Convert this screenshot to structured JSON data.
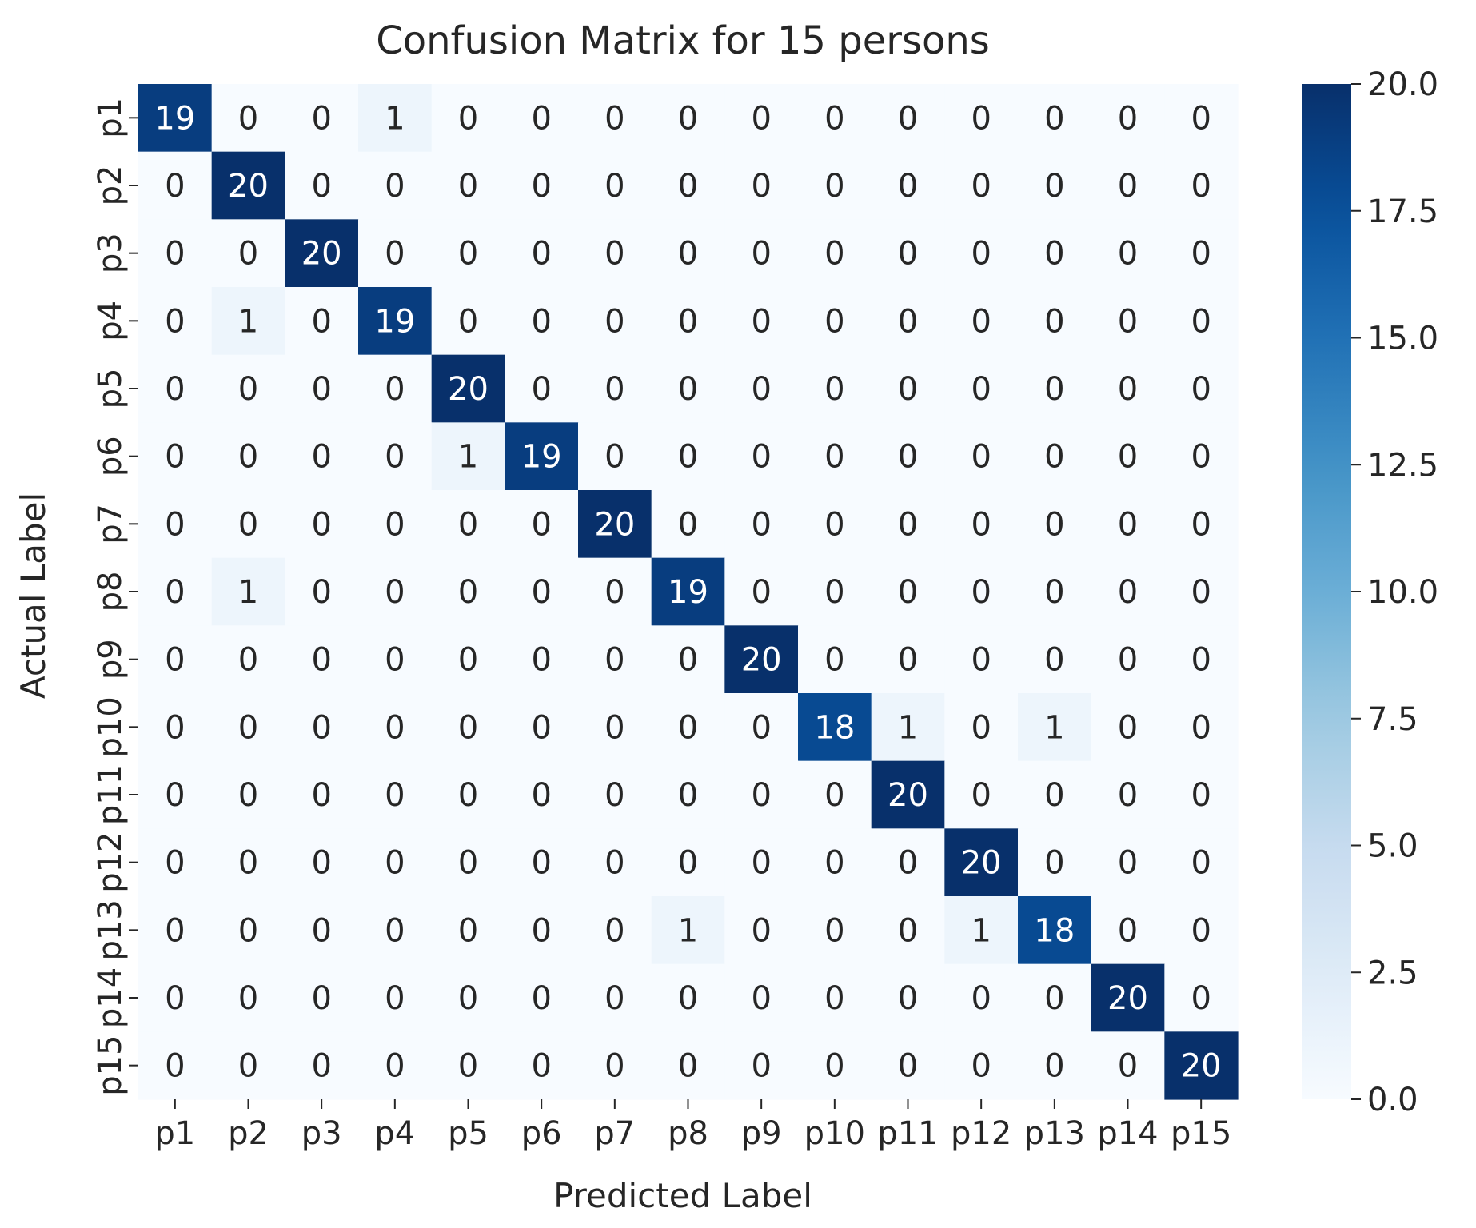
{
  "chart_data": {
    "type": "heatmap",
    "title": "Confusion Matrix for 15 persons",
    "xlabel": "Predicted Label",
    "ylabel": "Actual Label",
    "x_categories": [
      "p1",
      "p2",
      "p3",
      "p4",
      "p5",
      "p6",
      "p7",
      "p8",
      "p9",
      "p10",
      "p11",
      "p12",
      "p13",
      "p14",
      "p15"
    ],
    "y_categories": [
      "p1",
      "p2",
      "p3",
      "p4",
      "p5",
      "p6",
      "p7",
      "p8",
      "p9",
      "p10",
      "p11",
      "p12",
      "p13",
      "p14",
      "p15"
    ],
    "values": [
      [
        19,
        0,
        0,
        1,
        0,
        0,
        0,
        0,
        0,
        0,
        0,
        0,
        0,
        0,
        0
      ],
      [
        0,
        20,
        0,
        0,
        0,
        0,
        0,
        0,
        0,
        0,
        0,
        0,
        0,
        0,
        0
      ],
      [
        0,
        0,
        20,
        0,
        0,
        0,
        0,
        0,
        0,
        0,
        0,
        0,
        0,
        0,
        0
      ],
      [
        0,
        1,
        0,
        19,
        0,
        0,
        0,
        0,
        0,
        0,
        0,
        0,
        0,
        0,
        0
      ],
      [
        0,
        0,
        0,
        0,
        20,
        0,
        0,
        0,
        0,
        0,
        0,
        0,
        0,
        0,
        0
      ],
      [
        0,
        0,
        0,
        0,
        1,
        19,
        0,
        0,
        0,
        0,
        0,
        0,
        0,
        0,
        0
      ],
      [
        0,
        0,
        0,
        0,
        0,
        0,
        20,
        0,
        0,
        0,
        0,
        0,
        0,
        0,
        0
      ],
      [
        0,
        1,
        0,
        0,
        0,
        0,
        0,
        19,
        0,
        0,
        0,
        0,
        0,
        0,
        0
      ],
      [
        0,
        0,
        0,
        0,
        0,
        0,
        0,
        0,
        20,
        0,
        0,
        0,
        0,
        0,
        0
      ],
      [
        0,
        0,
        0,
        0,
        0,
        0,
        0,
        0,
        0,
        18,
        1,
        0,
        1,
        0,
        0
      ],
      [
        0,
        0,
        0,
        0,
        0,
        0,
        0,
        0,
        0,
        0,
        20,
        0,
        0,
        0,
        0
      ],
      [
        0,
        0,
        0,
        0,
        0,
        0,
        0,
        0,
        0,
        0,
        0,
        20,
        0,
        0,
        0
      ],
      [
        0,
        0,
        0,
        0,
        0,
        0,
        0,
        1,
        0,
        0,
        0,
        1,
        18,
        0,
        0
      ],
      [
        0,
        0,
        0,
        0,
        0,
        0,
        0,
        0,
        0,
        0,
        0,
        0,
        0,
        20,
        0
      ],
      [
        0,
        0,
        0,
        0,
        0,
        0,
        0,
        0,
        0,
        0,
        0,
        0,
        0,
        0,
        20
      ]
    ],
    "colorbar": {
      "min": 0.0,
      "max": 20.0,
      "ticks": [
        "0.0",
        "2.5",
        "5.0",
        "7.5",
        "10.0",
        "12.5",
        "15.0",
        "17.5",
        "20.0"
      ],
      "colormap": "Blues",
      "low_color": "#f7fbff",
      "high_color": "#08306b"
    },
    "legend": "colorbar-right",
    "grid": false
  }
}
